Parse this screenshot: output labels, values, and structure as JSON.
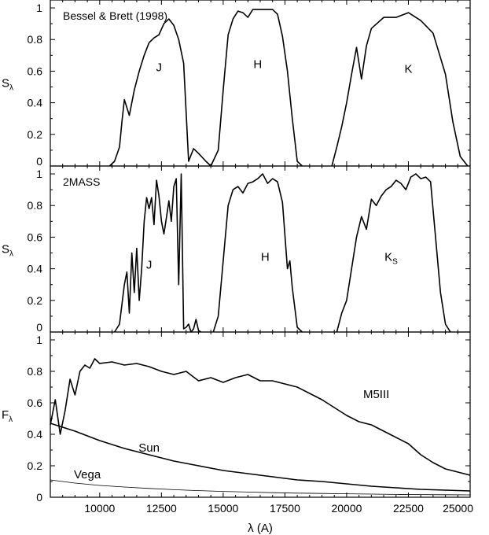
{
  "chart_data": [
    {
      "type": "line",
      "title": "Bessel & Brett (1998)",
      "ylabel": "S",
      "ylabel_sub": "λ",
      "xlim": [
        8000,
        25000
      ],
      "ylim": [
        0,
        1.05
      ],
      "yticks": [
        "0",
        "0.2",
        "0.4",
        "0.6",
        "0.8",
        "1"
      ],
      "band_labels": [
        {
          "text": "J",
          "sub": "",
          "x": 12400,
          "y": 0.6
        },
        {
          "text": "H",
          "sub": "",
          "x": 16400,
          "y": 0.62
        },
        {
          "text": "K",
          "sub": "",
          "x": 22500,
          "y": 0.59
        }
      ],
      "series": [
        {
          "x": [
            10400,
            10600,
            10800,
            10900,
            11000,
            11200,
            11400,
            11600,
            11800,
            12000,
            12200,
            12400,
            12600,
            12800,
            13000,
            13200,
            13400,
            13600,
            13800,
            14000,
            14300,
            14500
          ],
          "values": [
            0,
            0.03,
            0.12,
            0.28,
            0.42,
            0.32,
            0.48,
            0.6,
            0.7,
            0.78,
            0.81,
            0.83,
            0.9,
            0.93,
            0.89,
            0.8,
            0.65,
            0.03,
            0.11,
            0.08,
            0.03,
            0
          ]
        },
        {
          "x": [
            14500,
            14800,
            15000,
            15200,
            15400,
            15600,
            15800,
            16000,
            16200,
            16500,
            17000,
            17200,
            17400,
            17600,
            17800,
            18000,
            18200
          ],
          "values": [
            0,
            0.1,
            0.48,
            0.83,
            0.93,
            0.98,
            0.97,
            0.94,
            0.99,
            0.99,
            0.99,
            0.96,
            0.82,
            0.6,
            0.3,
            0.03,
            0
          ]
        },
        {
          "x": [
            19400,
            19600,
            19800,
            20000,
            20200,
            20400,
            20600,
            20800,
            21000,
            21500,
            22000,
            22500,
            23000,
            23500,
            24000,
            24300,
            24600,
            24900
          ],
          "values": [
            0,
            0.12,
            0.25,
            0.4,
            0.58,
            0.75,
            0.55,
            0.76,
            0.87,
            0.94,
            0.94,
            0.97,
            0.92,
            0.84,
            0.58,
            0.28,
            0.06,
            0
          ]
        }
      ]
    },
    {
      "type": "line",
      "title": "2MASS",
      "ylabel": "S",
      "ylabel_sub": "λ",
      "xlim": [
        8000,
        25000
      ],
      "ylim": [
        0,
        1.05
      ],
      "yticks": [
        "0",
        "0.2",
        "0.4",
        "0.6",
        "0.8",
        "1"
      ],
      "band_labels": [
        {
          "text": "J",
          "sub": "",
          "x": 12000,
          "y": 0.4
        },
        {
          "text": "H",
          "sub": "",
          "x": 16700,
          "y": 0.45
        },
        {
          "text": "K",
          "sub": "S",
          "x": 21800,
          "y": 0.45
        }
      ],
      "series": [
        {
          "x": [
            10600,
            10800,
            11000,
            11100,
            11200,
            11300,
            11400,
            11500,
            11600,
            11700,
            11800,
            11900,
            12000,
            12100,
            12200,
            12300,
            12400,
            12500,
            12600,
            12700,
            12800,
            12900,
            13000,
            13100,
            13200,
            13300,
            13400,
            13500,
            13600,
            13700,
            13800,
            13900,
            14000,
            14100
          ],
          "values": [
            0,
            0.05,
            0.3,
            0.38,
            0.12,
            0.5,
            0.25,
            0.53,
            0.2,
            0.4,
            0.7,
            0.85,
            0.78,
            0.85,
            0.68,
            0.96,
            0.86,
            0.7,
            0.62,
            0.72,
            0.83,
            0.7,
            0.92,
            0.97,
            0.3,
            1.0,
            0.02,
            0.03,
            0.05,
            0,
            0.02,
            0.08,
            0.01,
            0
          ]
        },
        {
          "x": [
            14600,
            14800,
            15000,
            15200,
            15400,
            15600,
            15800,
            16000,
            16200,
            16400,
            16600,
            16800,
            17000,
            17200,
            17400,
            17600,
            17700,
            17800,
            18000,
            18200
          ],
          "values": [
            0,
            0.1,
            0.45,
            0.8,
            0.9,
            0.92,
            0.88,
            0.94,
            0.95,
            0.97,
            1.0,
            0.94,
            0.97,
            0.95,
            0.82,
            0.4,
            0.45,
            0.28,
            0.03,
            0
          ]
        },
        {
          "x": [
            19600,
            19800,
            20000,
            20200,
            20400,
            20600,
            20800,
            21000,
            21200,
            21400,
            21600,
            21800,
            22000,
            22200,
            22400,
            22600,
            22800,
            23000,
            23200,
            23400,
            23600,
            23800,
            24000,
            24200
          ],
          "values": [
            0,
            0.12,
            0.2,
            0.4,
            0.6,
            0.73,
            0.65,
            0.84,
            0.8,
            0.86,
            0.9,
            0.92,
            0.96,
            0.94,
            0.9,
            0.98,
            1.0,
            0.97,
            0.98,
            0.95,
            0.6,
            0.25,
            0.05,
            0
          ]
        }
      ]
    },
    {
      "type": "line",
      "title": "",
      "ylabel": "F",
      "ylabel_sub": "λ",
      "xlabel": "λ (A)",
      "xlim": [
        8000,
        25000
      ],
      "ylim": [
        0,
        1.05
      ],
      "yticks": [
        "0",
        "0.2",
        "0.4",
        "0.6",
        "0.8",
        "1"
      ],
      "xticks": [
        "10000",
        "12500",
        "15000",
        "17500",
        "20000",
        "22500",
        "25000"
      ],
      "band_labels": [
        {
          "text": "M5III",
          "sub": "",
          "x": 21200,
          "y": 0.63
        },
        {
          "text": "Sun",
          "sub": "",
          "x": 12000,
          "y": 0.29
        },
        {
          "text": "Vega",
          "sub": "",
          "x": 9500,
          "y": 0.12
        }
      ],
      "series": [
        {
          "name": "M5III",
          "x": [
            8000,
            8200,
            8400,
            8600,
            8800,
            9000,
            9200,
            9400,
            9600,
            9800,
            10000,
            10500,
            11000,
            11500,
            12000,
            12500,
            13000,
            13500,
            14000,
            14500,
            15000,
            15500,
            16000,
            16500,
            17000,
            17500,
            18000,
            18500,
            19000,
            19500,
            20000,
            20500,
            21000,
            21500,
            22000,
            22500,
            23000,
            23500,
            24000,
            24500,
            25000
          ],
          "values": [
            0.46,
            0.62,
            0.4,
            0.55,
            0.75,
            0.65,
            0.8,
            0.84,
            0.82,
            0.88,
            0.85,
            0.86,
            0.84,
            0.85,
            0.83,
            0.8,
            0.78,
            0.8,
            0.74,
            0.76,
            0.73,
            0.76,
            0.78,
            0.74,
            0.74,
            0.72,
            0.7,
            0.66,
            0.62,
            0.57,
            0.52,
            0.48,
            0.46,
            0.42,
            0.38,
            0.34,
            0.27,
            0.22,
            0.18,
            0.16,
            0.14
          ]
        },
        {
          "name": "Sun",
          "x": [
            8000,
            9000,
            10000,
            11000,
            12000,
            13000,
            14000,
            15000,
            16000,
            17000,
            18000,
            19000,
            20000,
            21000,
            22000,
            23000,
            24000,
            25000
          ],
          "values": [
            0.47,
            0.42,
            0.36,
            0.31,
            0.27,
            0.23,
            0.2,
            0.17,
            0.15,
            0.13,
            0.11,
            0.1,
            0.085,
            0.07,
            0.06,
            0.05,
            0.045,
            0.04
          ]
        },
        {
          "name": "Vega",
          "x": [
            8000,
            9000,
            10000,
            11000,
            12000,
            13000,
            14000,
            15000,
            16000,
            17000,
            18000,
            19000,
            20000,
            21000,
            22000,
            23000,
            24000,
            25000
          ],
          "values": [
            0.11,
            0.09,
            0.075,
            0.065,
            0.056,
            0.048,
            0.042,
            0.037,
            0.033,
            0.029,
            0.026,
            0.024,
            0.022,
            0.02,
            0.018,
            0.017,
            0.016,
            0.015
          ]
        }
      ]
    }
  ]
}
